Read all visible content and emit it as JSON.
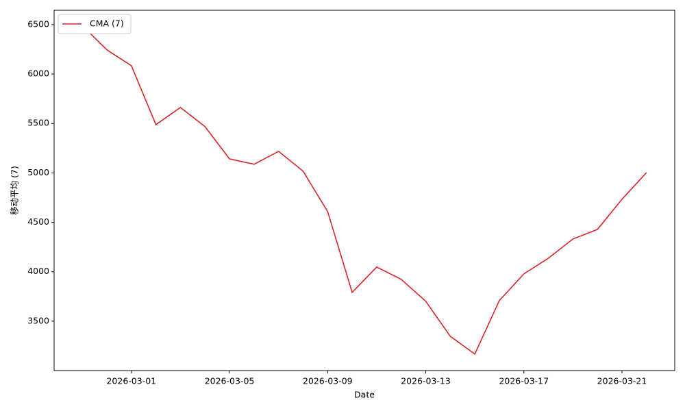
{
  "chart_data": {
    "type": "line",
    "x_label": "Date",
    "y_label": "移动平均 (7)",
    "x": [
      "2026-02-27",
      "2026-02-28",
      "2026-03-01",
      "2026-03-02",
      "2026-03-03",
      "2026-03-04",
      "2026-03-05",
      "2026-03-06",
      "2026-03-07",
      "2026-03-08",
      "2026-03-09",
      "2026-03-10",
      "2026-03-11",
      "2026-03-12",
      "2026-03-13",
      "2026-03-14",
      "2026-03-15",
      "2026-03-16",
      "2026-03-17",
      "2026-03-18",
      "2026-03-19",
      "2026-03-20",
      "2026-03-21",
      "2026-03-22"
    ],
    "series": [
      {
        "name": "CMA (7)",
        "color": "#d62728",
        "values": [
          6490,
          6245,
          6084,
          5488,
          5662,
          5468,
          5142,
          5087,
          5218,
          5017,
          4609,
          3791,
          4047,
          3923,
          3701,
          3347,
          3167,
          3708,
          3978,
          4137,
          4331,
          4428,
          4733,
          5003
        ]
      }
    ],
    "xlim": [
      "2026-02-25T20:24",
      "2026-03-23T03:36"
    ],
    "xticks": [
      "2026-03-01",
      "2026-03-05",
      "2026-03-09",
      "2026-03-13",
      "2026-03-17",
      "2026-03-21"
    ],
    "ylim": [
      3000,
      6645
    ],
    "yticks": [
      3500,
      4000,
      4500,
      5000,
      5500,
      6000,
      6500
    ],
    "legend": "upper left"
  }
}
